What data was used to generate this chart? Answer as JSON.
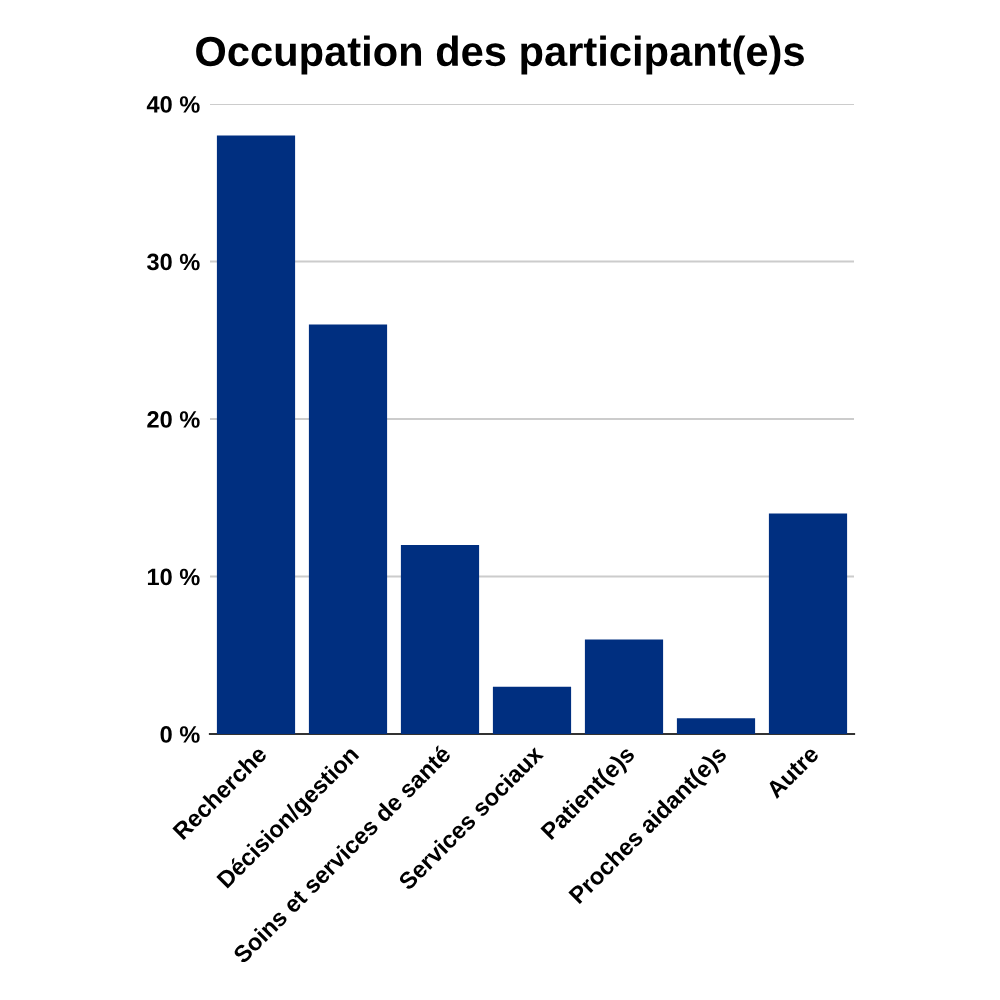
{
  "chart_data": {
    "type": "bar",
    "title": "Occupation des participant(e)s",
    "categories": [
      "Recherche",
      "Décision/gestion",
      "Soins et services de santé",
      "Services sociaux",
      "Patient(e)s",
      "Proches aidant(e)s",
      "Autre"
    ],
    "values": [
      38,
      26,
      12,
      3,
      6,
      1,
      14
    ],
    "color": "#002f80",
    "ylim": [
      0,
      40
    ],
    "yticks": [
      {
        "value": 0,
        "label": "0 %"
      },
      {
        "value": 10,
        "label": "10 %"
      },
      {
        "value": 20,
        "label": "20 %"
      },
      {
        "value": 30,
        "label": "30 %"
      },
      {
        "value": 40,
        "label": "40 %"
      }
    ],
    "grid": "y"
  }
}
